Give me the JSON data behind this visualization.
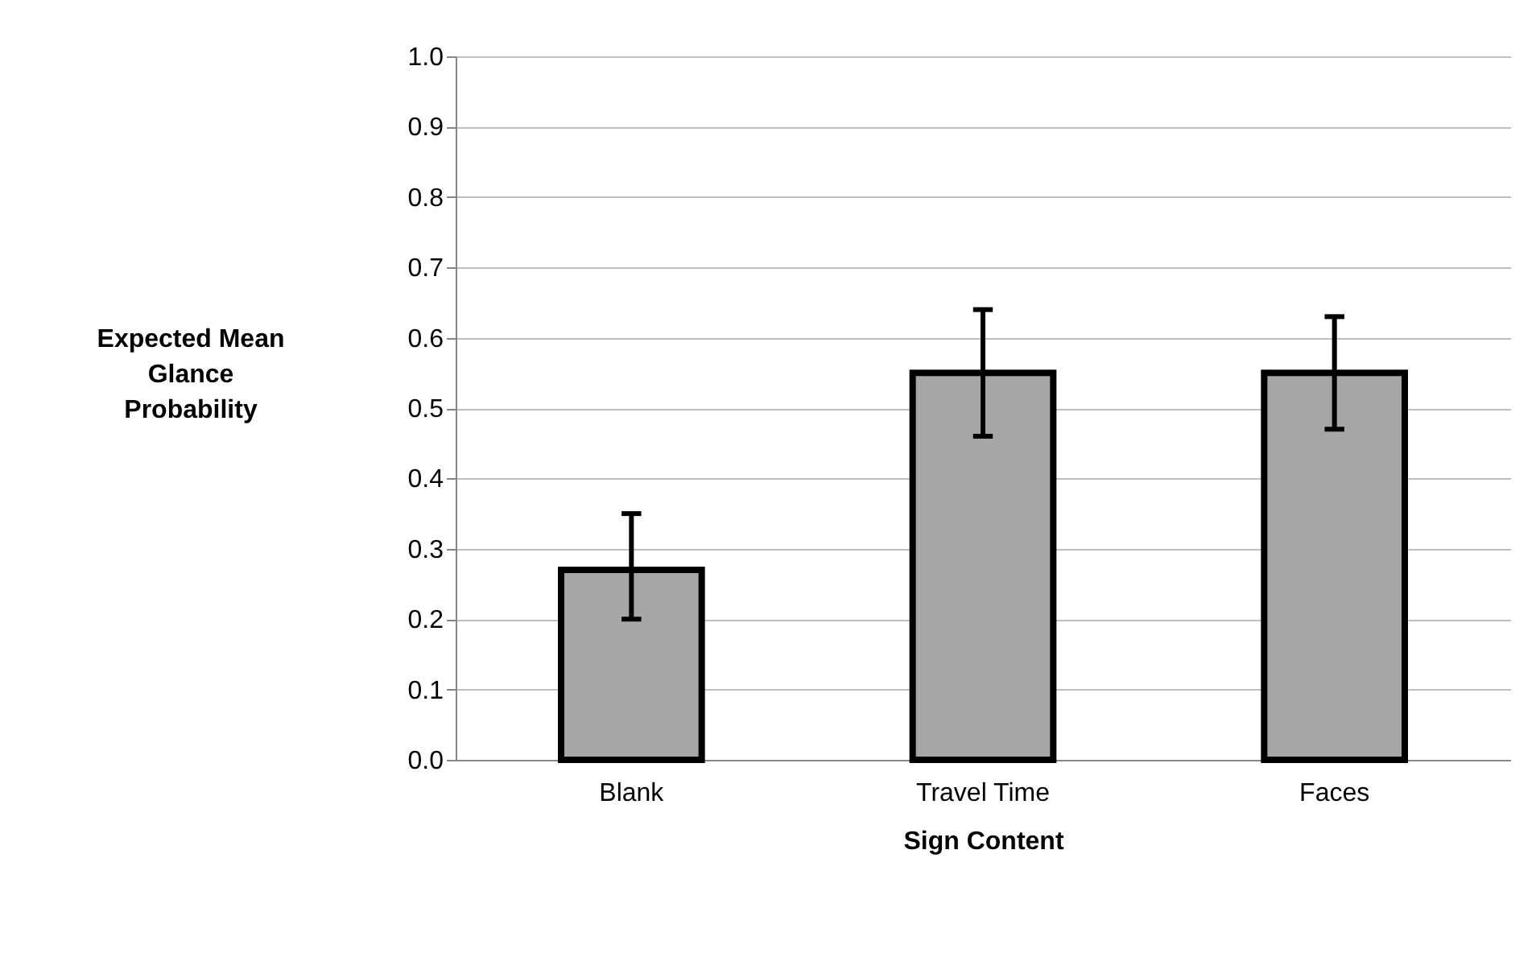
{
  "chart_data": {
    "type": "bar",
    "xlabel": "Sign Content",
    "ylabel": "Expected Mean Glance Probability",
    "categories": [
      "Blank",
      "Travel Time",
      "Faces"
    ],
    "values": [
      0.27,
      0.55,
      0.55
    ],
    "errors": [
      [
        0.2,
        0.35
      ],
      [
        0.46,
        0.64
      ],
      [
        0.47,
        0.63
      ]
    ],
    "color": "#a6a6a6",
    "ylim": [
      0,
      1
    ],
    "yticks": [
      {
        "value": 0,
        "label": "0.0"
      },
      {
        "value": 0.1,
        "label": "0.1"
      },
      {
        "value": 0.2,
        "label": "0.2"
      },
      {
        "value": 0.3,
        "label": "0.3"
      },
      {
        "value": 0.4,
        "label": "0.4"
      },
      {
        "value": 0.5,
        "label": "0.5"
      },
      {
        "value": 0.6,
        "label": "0.6"
      },
      {
        "value": 0.7,
        "label": "0.7"
      },
      {
        "value": 0.8,
        "label": "0.8"
      },
      {
        "value": 0.9,
        "label": "0.9"
      },
      {
        "value": 1,
        "label": "1.0"
      }
    ],
    "grid": "y"
  }
}
